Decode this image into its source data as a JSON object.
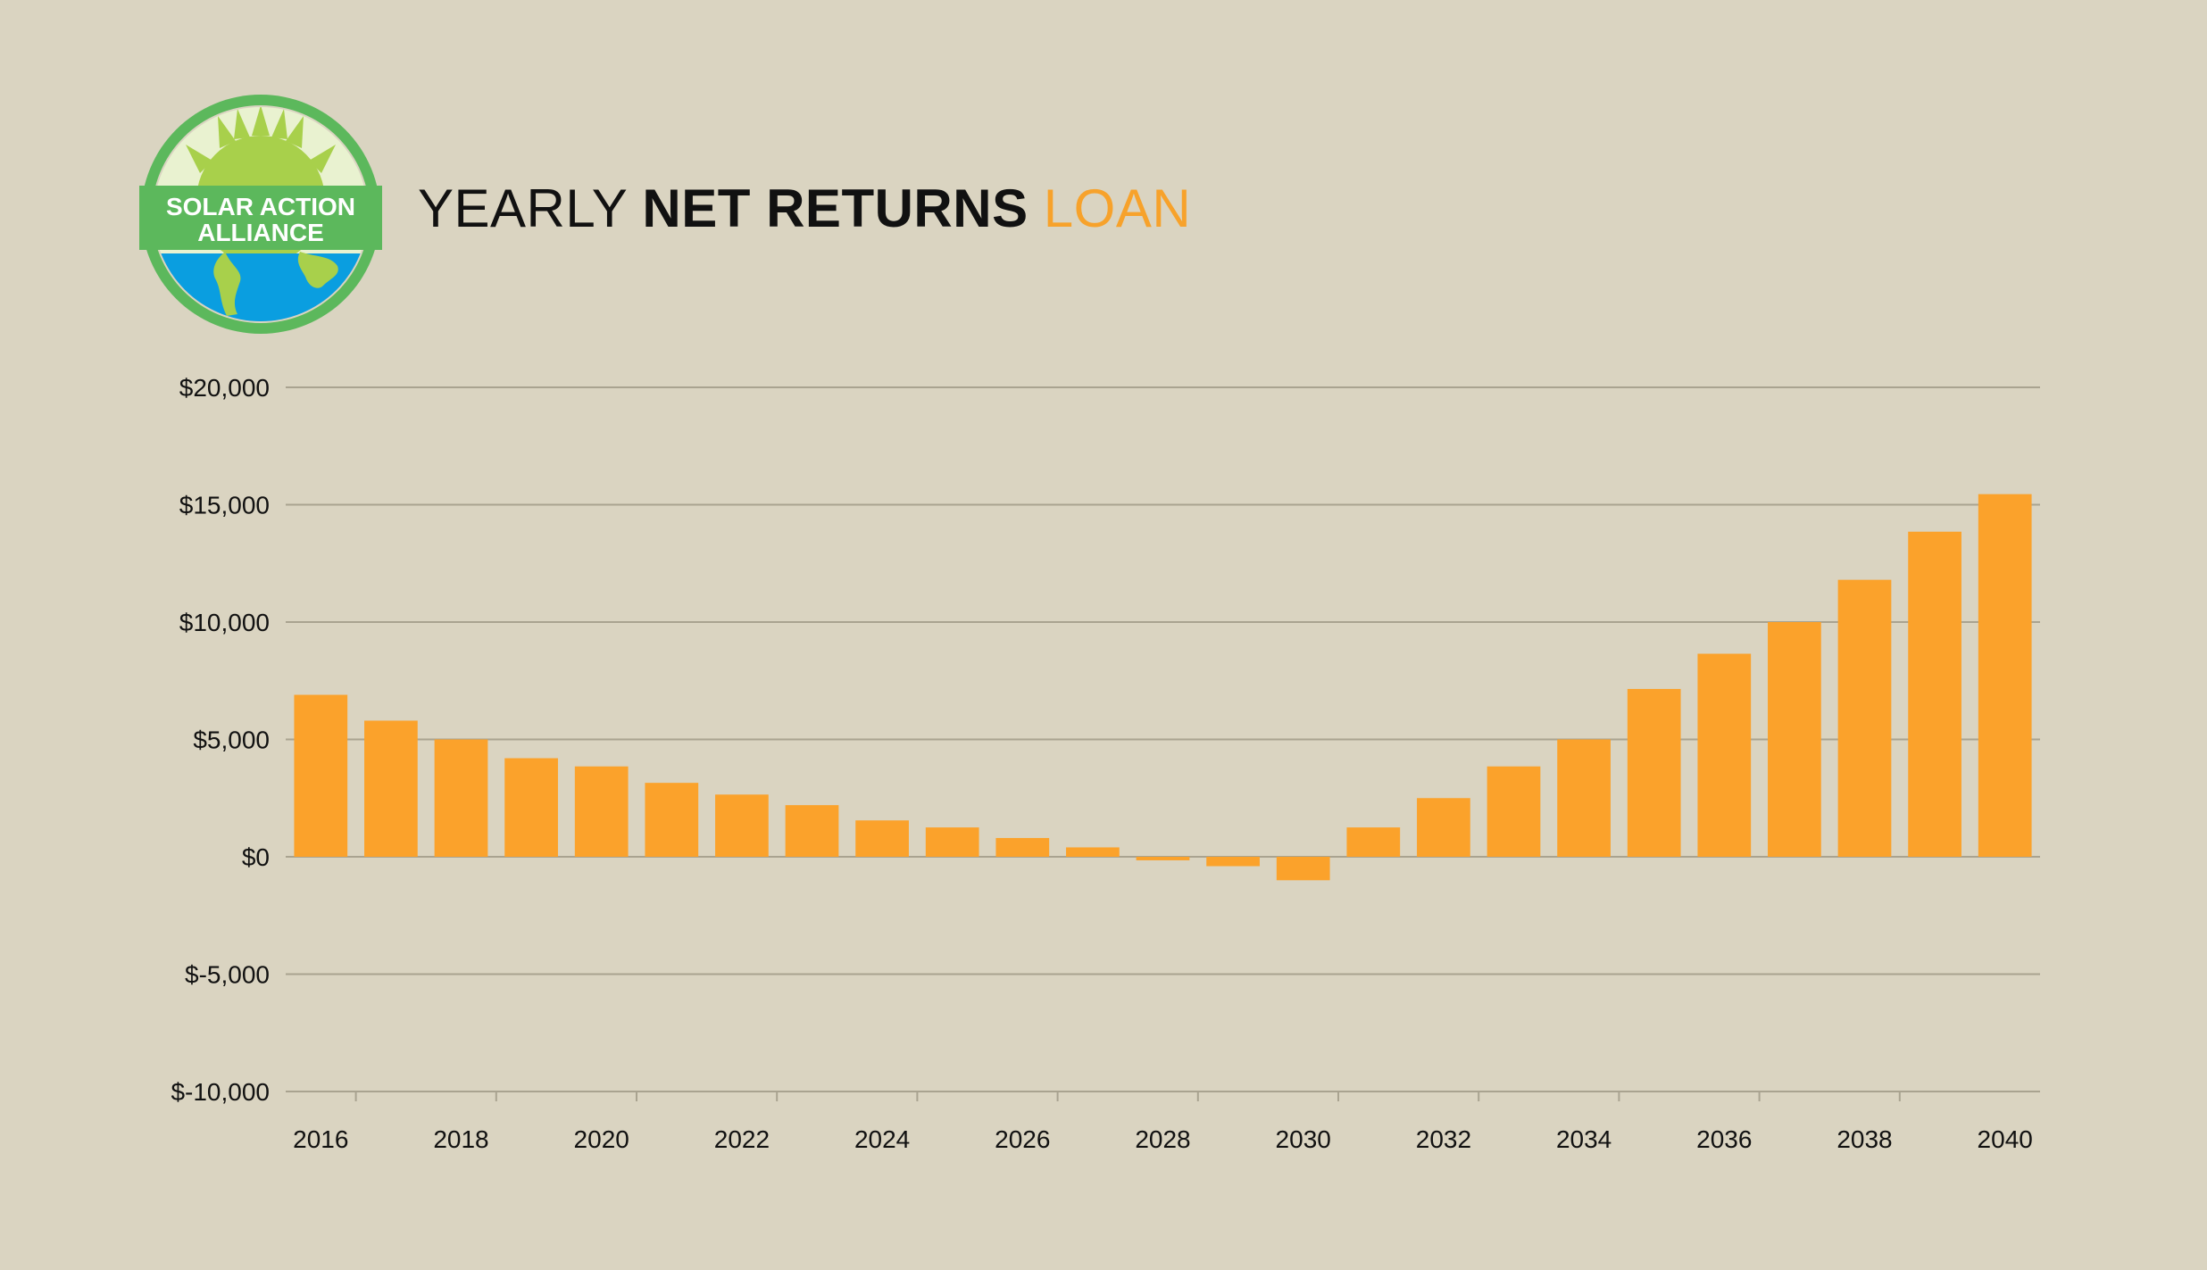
{
  "brand": {
    "logo_line1": "SOLAR ACTION",
    "logo_line2": "ALLIANCE",
    "colors": {
      "ring": "#5cb85c",
      "sun": "#a8d04b",
      "earth": "#0a9ee0",
      "land": "#a8d04b"
    }
  },
  "title": {
    "part1": "YEARLY ",
    "part2": "NET RETURNS",
    "part3": " LOAN"
  },
  "colors": {
    "background": "#dad4c1",
    "bar": "#fba22b",
    "grid": "#a9a390",
    "accent": "#f7a22b",
    "text": "#111111"
  },
  "chart_data": {
    "type": "bar",
    "title": "YEARLY NET RETURNS LOAN",
    "xlabel": "",
    "ylabel": "",
    "ylim": [
      -10000,
      20000
    ],
    "yticks": [
      {
        "value": 20000,
        "label": "$20,000"
      },
      {
        "value": 15000,
        "label": "$15,000"
      },
      {
        "value": 10000,
        "label": "$10,000"
      },
      {
        "value": 5000,
        "label": "$5,000"
      },
      {
        "value": 0,
        "label": "$0"
      },
      {
        "value": -5000,
        "label": "$-5,000"
      },
      {
        "value": -10000,
        "label": "$-10,000"
      }
    ],
    "categories": [
      "2016",
      "2017",
      "2018",
      "2019",
      "2020",
      "2021",
      "2022",
      "2023",
      "2024",
      "2025",
      "2026",
      "2027",
      "2028",
      "2029",
      "2030",
      "2031",
      "2032",
      "2033",
      "2034",
      "2035",
      "2036",
      "2037",
      "2038",
      "2039",
      "2040"
    ],
    "xtick_labels": [
      "2016",
      "",
      "2018",
      "",
      "2020",
      "",
      "2022",
      "",
      "2024",
      "",
      "2026",
      "",
      "2028",
      "",
      "2030",
      "",
      "2032",
      "",
      "2034",
      "",
      "2036",
      "",
      "2038",
      "",
      "2040"
    ],
    "values": [
      6900,
      5800,
      5000,
      4200,
      3850,
      3150,
      2650,
      2200,
      1550,
      1250,
      800,
      400,
      -150,
      -400,
      -1000,
      1250,
      2500,
      3850,
      5000,
      7150,
      8650,
      10000,
      11800,
      13850,
      15450
    ],
    "grid": true,
    "legend": "none"
  }
}
